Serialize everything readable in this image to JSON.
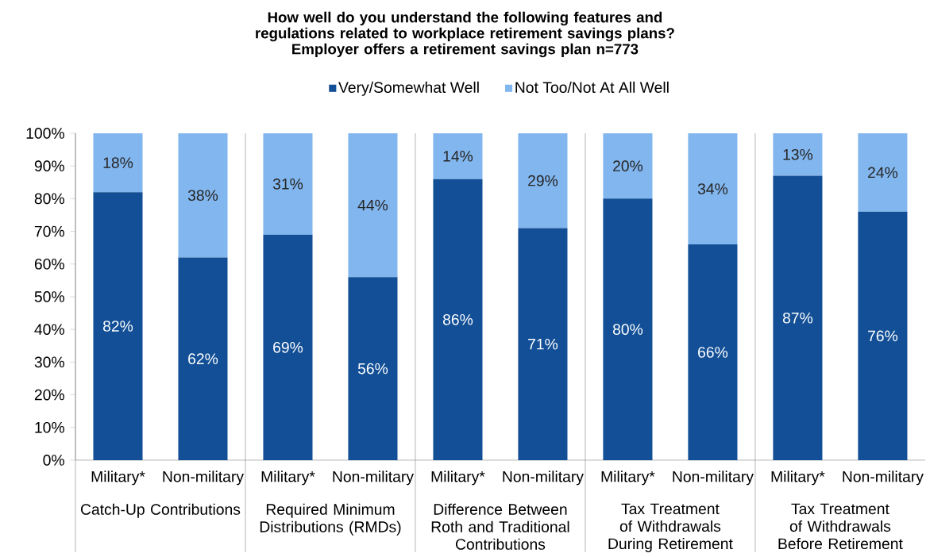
{
  "chart_data": {
    "type": "bar",
    "stacked": true,
    "title": "How well do you understand the following features and regulations related to workplace retirement savings plans?",
    "subtitle": "Employer offers a retirement savings plan n=773",
    "categories": [
      "Military*",
      "Non-military",
      "Military*",
      "Non-military",
      "Military*",
      "Non-military",
      "Military*",
      "Non-military",
      "Military*",
      "Non-military"
    ],
    "series": [
      {
        "name": "Very/Somewhat Well",
        "color": "#124f96",
        "values": [
          82,
          62,
          69,
          56,
          86,
          71,
          80,
          66,
          87,
          76
        ],
        "value_labels": [
          "82%",
          "62%",
          "69%",
          "56%",
          "86%",
          "71%",
          "80%",
          "66%",
          "87%",
          "76%"
        ]
      },
      {
        "name": "Not Too/Not At All Well",
        "color": "#82b6ee",
        "values": [
          18,
          38,
          31,
          44,
          14,
          29,
          20,
          34,
          13,
          24
        ],
        "value_labels": [
          "18%",
          "38%",
          "31%",
          "44%",
          "14%",
          "29%",
          "20%",
          "34%",
          "13%",
          "24%"
        ]
      }
    ],
    "annotations": [
      "Catch-Up Contributions",
      "Required Minimum Distributions (RMDs)",
      "Difference Between Roth and Traditional Contributions",
      "Tax Treatment of Withdrawals During Retirement",
      "Tax Treatment of Withdrawals Before Retirement"
    ],
    "ylim": [
      0,
      100
    ],
    "yticks": [
      {
        "value": 0,
        "label": "0%"
      },
      {
        "value": 10,
        "label": "10%"
      },
      {
        "value": 20,
        "label": "20%"
      },
      {
        "value": 30,
        "label": "30%"
      },
      {
        "value": 40,
        "label": "40%"
      },
      {
        "value": 50,
        "label": "50%"
      },
      {
        "value": 60,
        "label": "60%"
      },
      {
        "value": 70,
        "label": "70%"
      },
      {
        "value": 80,
        "label": "80%"
      },
      {
        "value": 90,
        "label": "90%"
      },
      {
        "value": 100,
        "label": "100%"
      }
    ],
    "legend": "top"
  }
}
